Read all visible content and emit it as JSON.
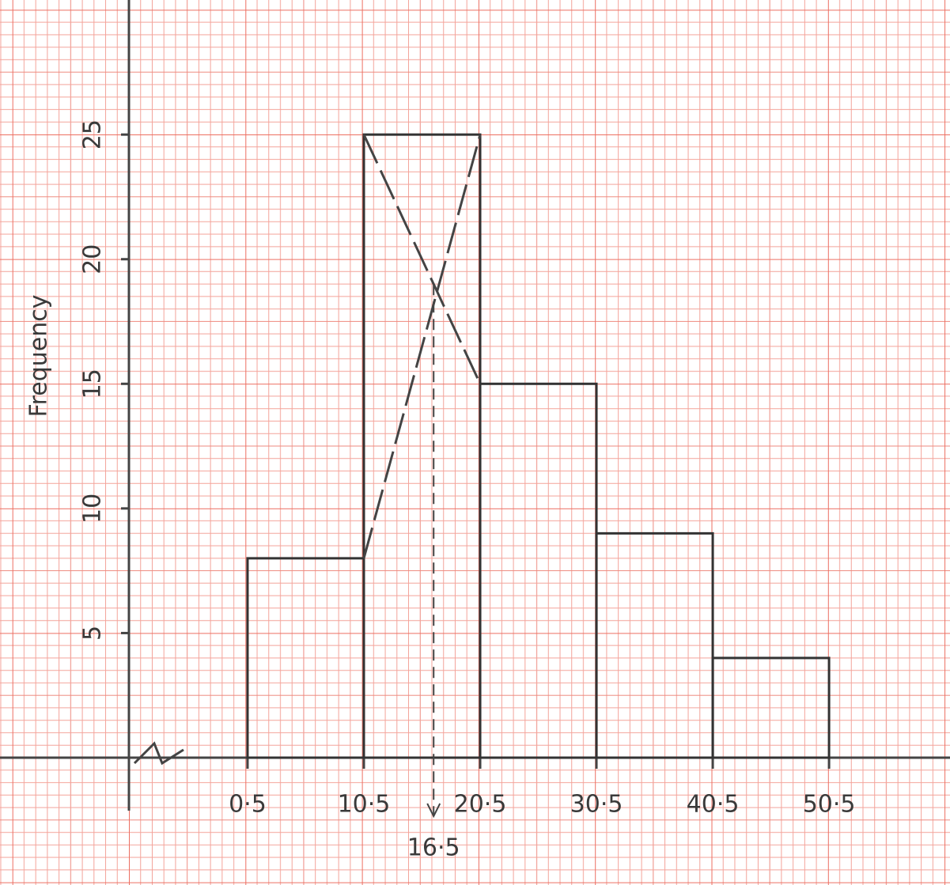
{
  "chart_data": {
    "type": "histogram",
    "bins": [
      0.5,
      10.5,
      20.5,
      30.5,
      40.5,
      50.5
    ],
    "counts": [
      8,
      25,
      15,
      9,
      4
    ],
    "color": "#333333",
    "ylabel": "Frequency",
    "xlim": [
      -9.7,
      60.9
    ],
    "ylim": [
      0,
      30.4
    ],
    "xticks": [
      {
        "value": 0.5,
        "label": "0·5"
      },
      {
        "value": 10.5,
        "label": "10·5"
      },
      {
        "value": 20.5,
        "label": "20·5"
      },
      {
        "value": 30.5,
        "label": "30·5"
      },
      {
        "value": 40.5,
        "label": "40·5"
      },
      {
        "value": 50.5,
        "label": "50·5"
      }
    ],
    "yticks": [
      5,
      10,
      15,
      20,
      25
    ],
    "mode": {
      "value": 16.5,
      "label": "16·5"
    }
  }
}
